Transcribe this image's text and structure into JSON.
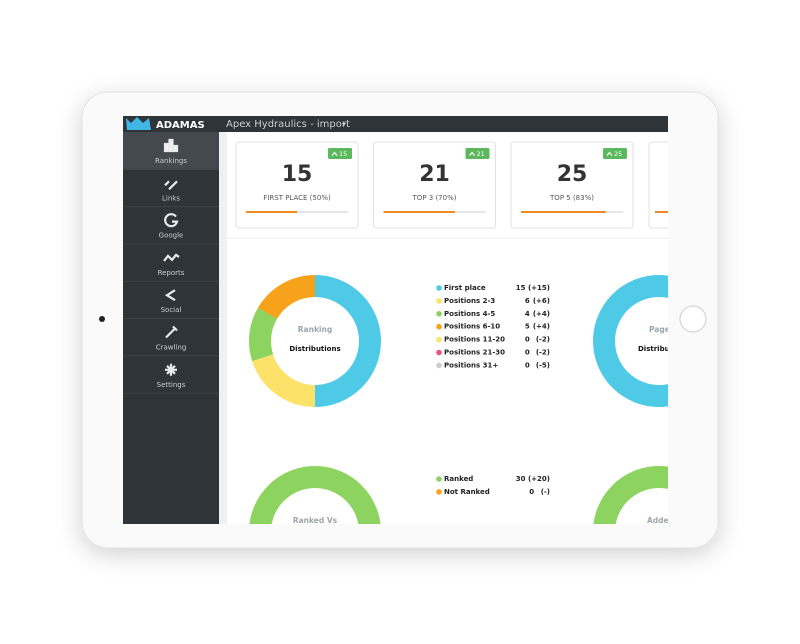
{
  "header": {
    "logo": "ADAMAS",
    "title": "Apex Hydraulics - import"
  },
  "sidebar": [
    "Rankings",
    "Links",
    "Google",
    "Reports",
    "Social",
    "Crawling",
    "Settings"
  ],
  "cards": [
    {
      "value": 15,
      "label": "FIRST PLACE (50%)",
      "badge": 15,
      "progress": 50
    },
    {
      "value": 21,
      "label": "TOP 3 (70%)",
      "badge": 21,
      "progress": 70
    },
    {
      "value": 25,
      "label": "TOP 5 (83%)",
      "badge": 25,
      "progress": 83
    }
  ],
  "ranking_donut": {
    "title": "Ranking",
    "subtitle": "Distributions",
    "items": [
      {
        "name": "First place",
        "value": 15,
        "change": "(+15)",
        "color": "#4ec9e6"
      },
      {
        "name": "Positions 2-3",
        "value": 6,
        "change": "(+6)",
        "color": "#fde26a"
      },
      {
        "name": "Positions 4-5",
        "value": 4,
        "change": "(+4)",
        "color": "#8dd35f"
      },
      {
        "name": "Positions 6-10",
        "value": 5,
        "change": "(+4)",
        "color": "#f7a21b"
      },
      {
        "name": "Positions 11-20",
        "value": 0,
        "change": "(-2)",
        "color": "#fde26a"
      },
      {
        "name": "Positions 21-30",
        "value": 0,
        "change": "(-2)",
        "color": "#e8557a"
      },
      {
        "name": "Positions 31+",
        "value": 0,
        "change": "(-5)",
        "color": "#cccccc"
      }
    ]
  },
  "ranked_donut": {
    "title": "Ranked Vs",
    "items": [
      {
        "name": "Ranked",
        "value": 30,
        "change": "(+20)",
        "color": "#8dd35f"
      },
      {
        "name": "Not Ranked",
        "value": 0,
        "change": "(-)",
        "color": "#f7a21b"
      }
    ]
  },
  "right_donuts": {
    "top_title": "Page",
    "top_subtitle": "Distributions",
    "bottom_title": "Added"
  }
}
